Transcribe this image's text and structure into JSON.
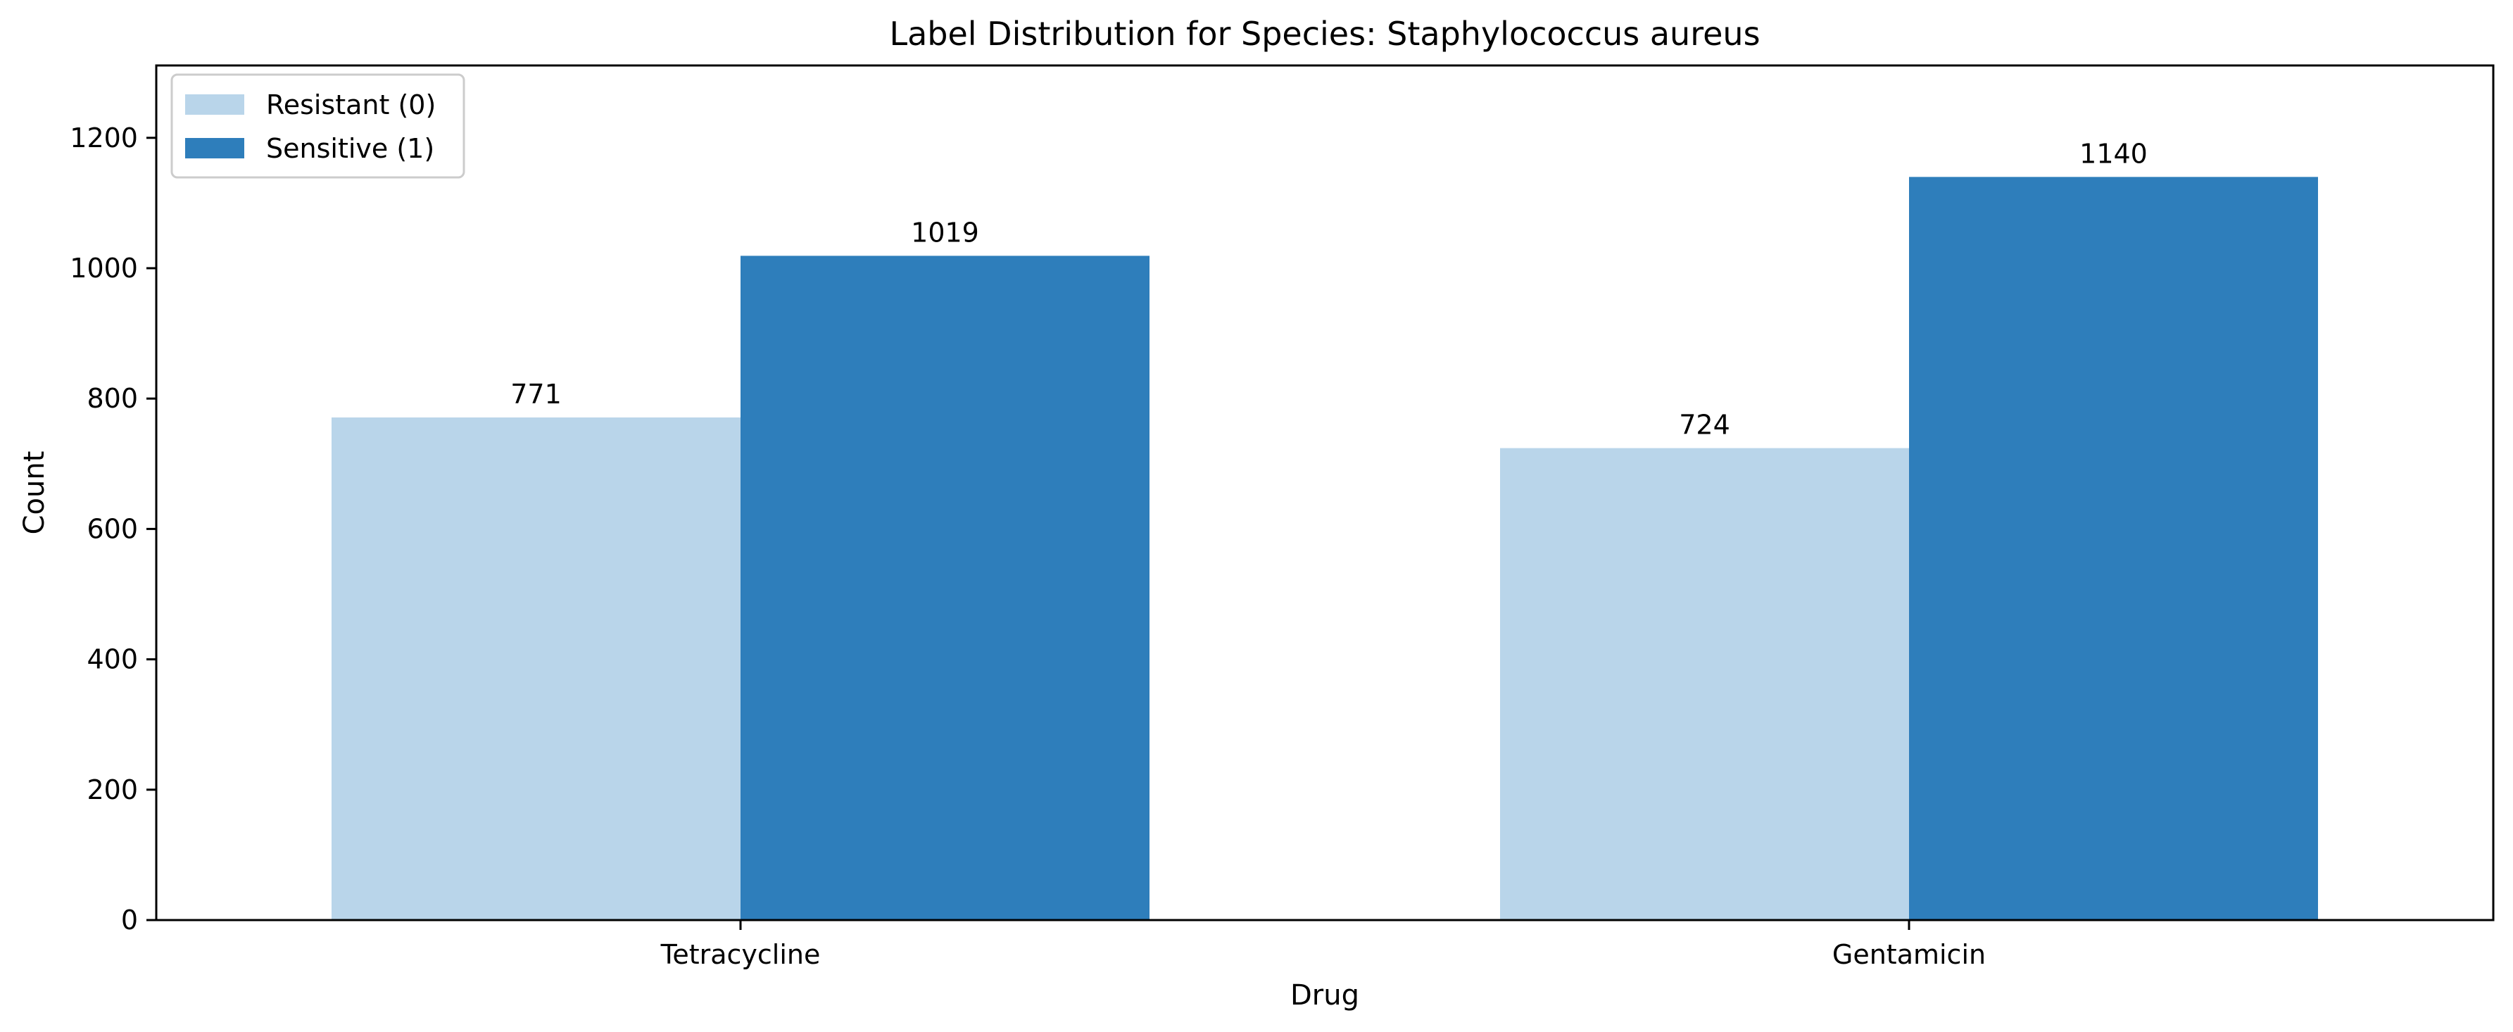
{
  "chart_data": {
    "type": "bar",
    "title": "Label Distribution for Species: Staphylococcus aureus",
    "xlabel": "Drug",
    "ylabel": "Count",
    "categories": [
      "Tetracycline",
      "Gentamicin"
    ],
    "series": [
      {
        "name": "Resistant (0)",
        "values": [
          771,
          724
        ],
        "color": "#b9d5ea"
      },
      {
        "name": "Sensitive (1)",
        "values": [
          1019,
          1140
        ],
        "color": "#2e7ebb"
      }
    ],
    "data_labels": [
      "771",
      "1019",
      "724",
      "1140"
    ],
    "ylim": [
      0,
      1311
    ],
    "yticks": [
      0,
      200,
      400,
      600,
      800,
      1000,
      1200
    ],
    "ytick_labels": [
      "0",
      "200",
      "400",
      "600",
      "800",
      "1000",
      "1200"
    ],
    "grid": false,
    "legend_position": "top-left"
  }
}
